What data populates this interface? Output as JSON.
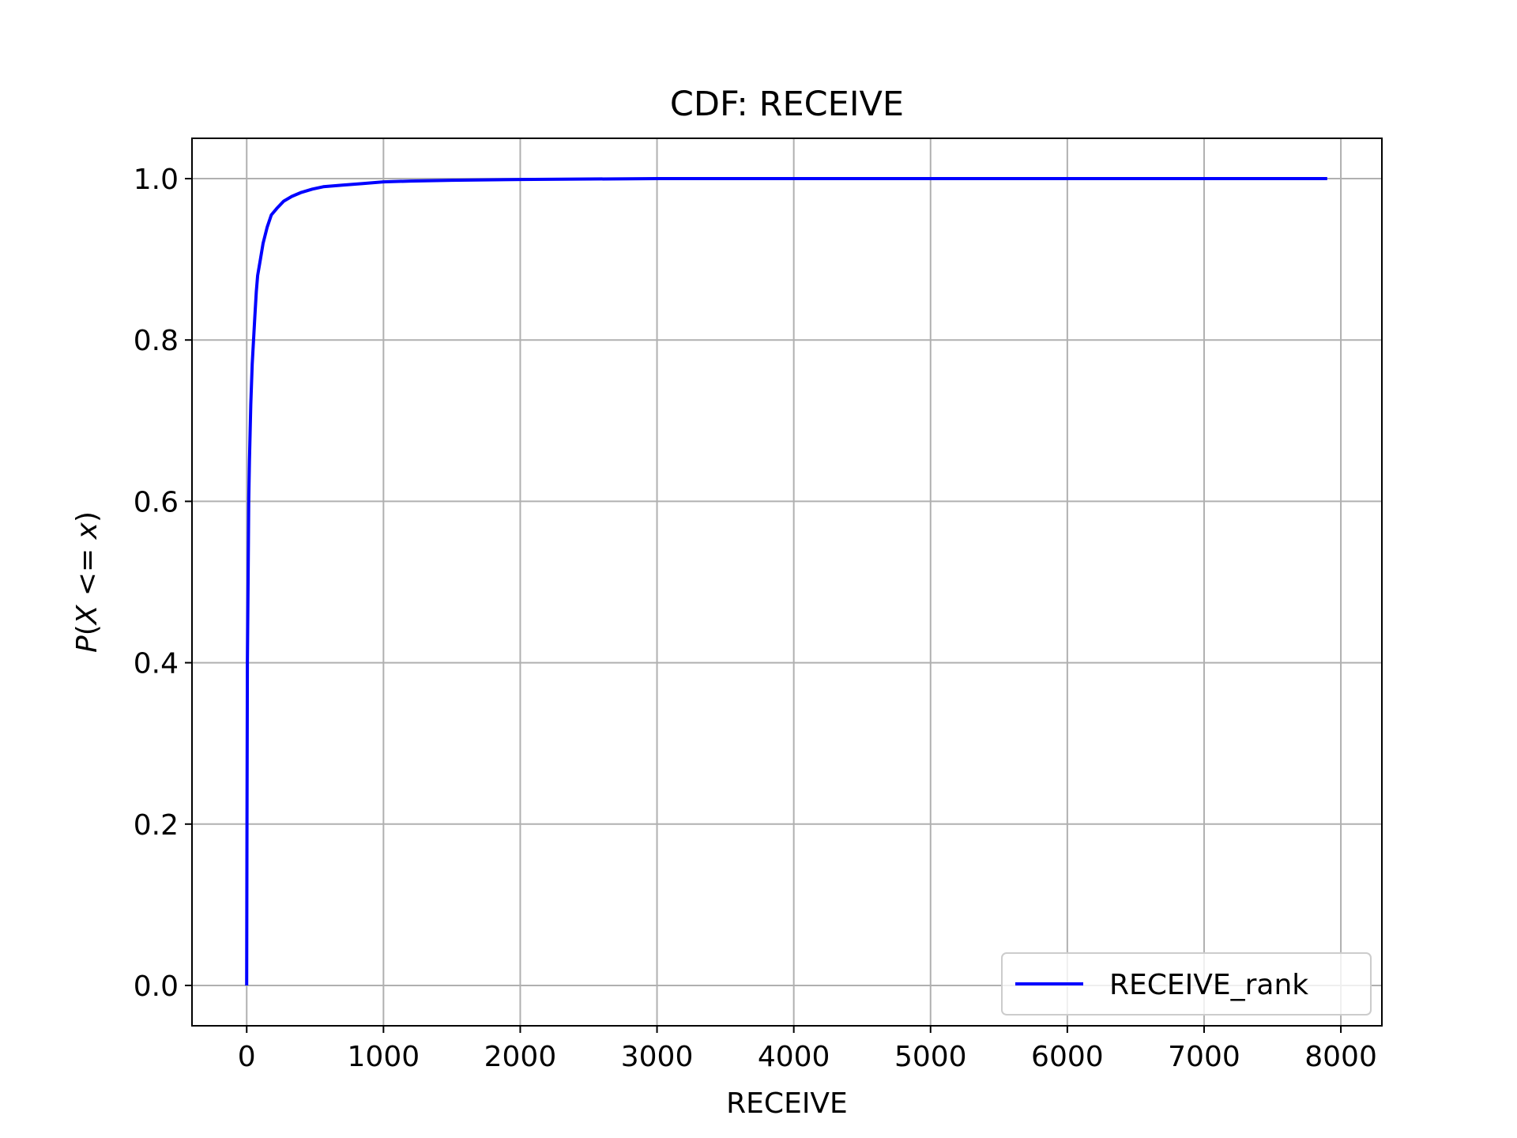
{
  "chart_data": {
    "type": "line",
    "title": "CDF: RECEIVE",
    "xlabel": "RECEIVE",
    "ylabel_parts": {
      "p": "P",
      "open": "(",
      "x_upper": "X",
      "op": " <= ",
      "x_lower": "x",
      "close": ")"
    },
    "xlim": [
      -400,
      8300
    ],
    "ylim": [
      -0.05,
      1.05
    ],
    "x_ticks": [
      0,
      1000,
      2000,
      3000,
      4000,
      5000,
      6000,
      7000,
      8000
    ],
    "x_tick_labels": [
      "0",
      "1000",
      "2000",
      "3000",
      "4000",
      "5000",
      "6000",
      "7000",
      "8000"
    ],
    "y_ticks": [
      0.0,
      0.2,
      0.4,
      0.6,
      0.8,
      1.0
    ],
    "y_tick_labels": [
      "0.0",
      "0.2",
      "0.4",
      "0.6",
      "0.8",
      "1.0"
    ],
    "grid": true,
    "legend_position": "lower-right",
    "series": [
      {
        "name": "RECEIVE_rank",
        "color": "#0000ff",
        "x": [
          0,
          2,
          5,
          10,
          15,
          20,
          30,
          40,
          50,
          60,
          70,
          80,
          100,
          120,
          150,
          180,
          220,
          270,
          330,
          400,
          480,
          560,
          700,
          850,
          1000,
          1200,
          1500,
          2000,
          3000,
          5000,
          7900
        ],
        "y": [
          0.0,
          0.2,
          0.4,
          0.5,
          0.6,
          0.65,
          0.72,
          0.77,
          0.8,
          0.83,
          0.86,
          0.88,
          0.9,
          0.92,
          0.94,
          0.955,
          0.963,
          0.972,
          0.978,
          0.983,
          0.987,
          0.99,
          0.992,
          0.994,
          0.996,
          0.997,
          0.998,
          0.999,
          1.0,
          1.0,
          1.0
        ]
      }
    ]
  }
}
